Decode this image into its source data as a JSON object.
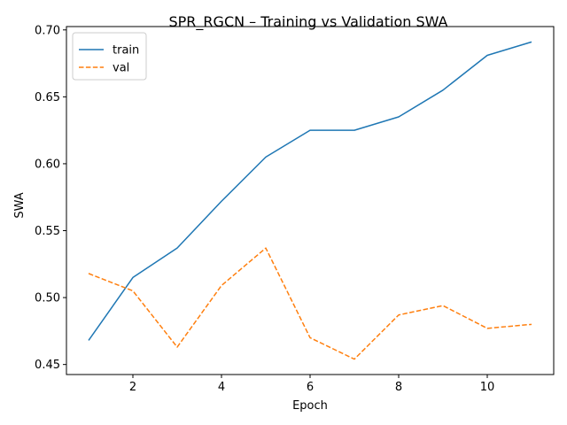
{
  "chart_data": {
    "type": "line",
    "title": "SPR_RGCN – Training vs Validation SWA",
    "xlabel": "Epoch",
    "ylabel": "SWA",
    "x": [
      1,
      2,
      3,
      4,
      5,
      6,
      7,
      8,
      9,
      10,
      11
    ],
    "xlim": [
      0.5,
      11.5
    ],
    "ylim": [
      0.4425,
      0.7025
    ],
    "xticks": [
      2,
      4,
      6,
      8,
      10
    ],
    "xtick_labels": [
      "2",
      "4",
      "6",
      "8",
      "10"
    ],
    "yticks": [
      0.45,
      0.5,
      0.55,
      0.6,
      0.65,
      0.7
    ],
    "ytick_labels": [
      "0.45",
      "0.50",
      "0.55",
      "0.60",
      "0.65",
      "0.70"
    ],
    "grid": false,
    "legend_position": "upper-left",
    "series": [
      {
        "name": "train",
        "color": "#1f77b4",
        "style": "solid",
        "values": [
          0.468,
          0.515,
          0.537,
          0.572,
          0.605,
          0.625,
          0.625,
          0.635,
          0.655,
          0.681,
          0.691
        ]
      },
      {
        "name": "val",
        "color": "#ff7f0e",
        "style": "dashed",
        "values": [
          0.518,
          0.505,
          0.463,
          0.509,
          0.537,
          0.47,
          0.454,
          0.487,
          0.494,
          0.477,
          0.48
        ]
      }
    ]
  }
}
